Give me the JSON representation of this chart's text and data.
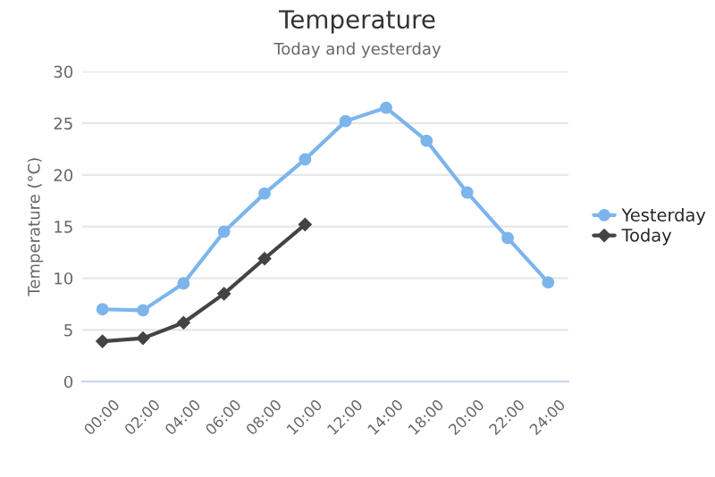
{
  "chart_data": {
    "type": "line",
    "title": "Temperature",
    "subtitle": "Today and yesterday",
    "ylabel": "Temperature (°C)",
    "categories": [
      "00:00",
      "02:00",
      "04:00",
      "06:00",
      "08:00",
      "10:00",
      "12:00",
      "14:00",
      "18:00",
      "20:00",
      "22:00",
      "24:00"
    ],
    "series": [
      {
        "name": "Yesterday",
        "color": "#7cb5ec",
        "marker": "circle",
        "values": [
          7.0,
          6.9,
          9.5,
          14.5,
          18.2,
          21.5,
          25.2,
          26.5,
          23.3,
          18.3,
          13.9,
          9.6
        ]
      },
      {
        "name": "Today",
        "color": "#434348",
        "marker": "diamond",
        "values": [
          3.9,
          4.2,
          5.7,
          8.5,
          11.9,
          15.2,
          null,
          null,
          null,
          null,
          null,
          null
        ]
      }
    ],
    "ylim": [
      0,
      30
    ],
    "yticks": [
      0,
      5,
      10,
      15,
      20,
      25,
      30
    ],
    "grid": "y",
    "legend": "right",
    "line_style": "solid"
  }
}
